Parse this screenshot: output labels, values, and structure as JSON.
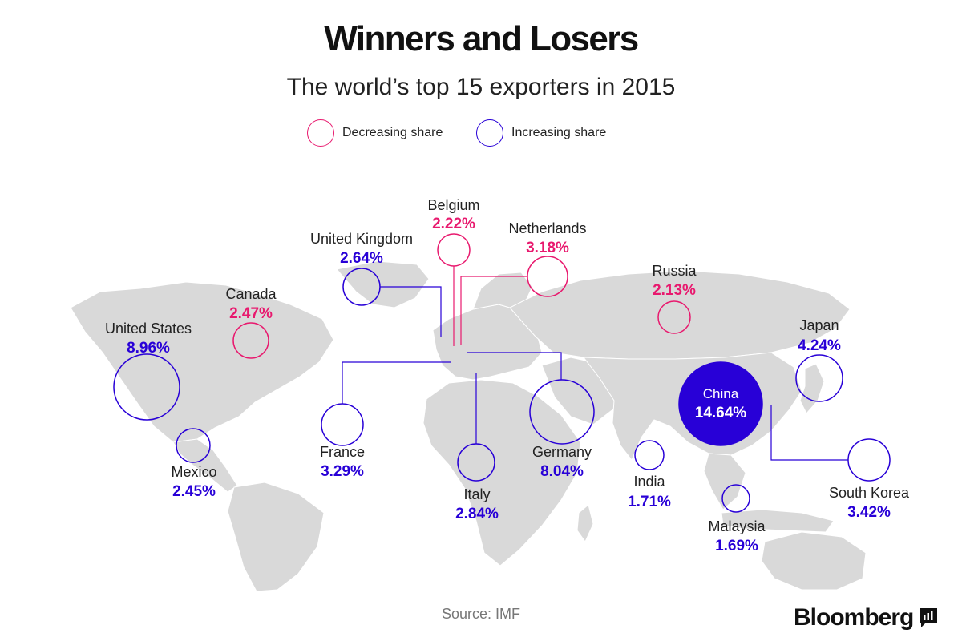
{
  "title": "Winners and Losers",
  "subtitle": "The world’s top 15 exporters in 2015",
  "legend": {
    "decreasing": "Decreasing share",
    "increasing": "Increasing share"
  },
  "colors": {
    "decreasing": "#e8196e",
    "increasing": "#2800d7",
    "land": "#d8d8d8",
    "leader_line_increasing": "#2800d7",
    "leader_line_decreasing": "#e8196e"
  },
  "source": "Source: IMF",
  "brand": "Bloomberg",
  "chart_data": {
    "type": "map-bubble",
    "title": "Winners and Losers",
    "subtitle": "The world’s top 15 exporters in 2015",
    "unit": "% share of world exports",
    "series": [
      {
        "name": "China",
        "value": 14.64,
        "label": "14.64%",
        "trend": "increasing"
      },
      {
        "name": "United States",
        "value": 8.96,
        "label": "8.96%",
        "trend": "increasing"
      },
      {
        "name": "Germany",
        "value": 8.04,
        "label": "8.04%",
        "trend": "increasing"
      },
      {
        "name": "Japan",
        "value": 4.24,
        "label": "4.24%",
        "trend": "increasing"
      },
      {
        "name": "South Korea",
        "value": 3.42,
        "label": "3.42%",
        "trend": "increasing"
      },
      {
        "name": "France",
        "value": 3.29,
        "label": "3.29%",
        "trend": "increasing"
      },
      {
        "name": "Netherlands",
        "value": 3.18,
        "label": "3.18%",
        "trend": "decreasing"
      },
      {
        "name": "Italy",
        "value": 2.84,
        "label": "2.84%",
        "trend": "increasing"
      },
      {
        "name": "United Kingdom",
        "value": 2.64,
        "label": "2.64%",
        "trend": "increasing"
      },
      {
        "name": "Canada",
        "value": 2.47,
        "label": "2.47%",
        "trend": "decreasing"
      },
      {
        "name": "Mexico",
        "value": 2.45,
        "label": "2.45%",
        "trend": "increasing"
      },
      {
        "name": "Belgium",
        "value": 2.22,
        "label": "2.22%",
        "trend": "decreasing"
      },
      {
        "name": "Russia",
        "value": 2.13,
        "label": "2.13%",
        "trend": "decreasing"
      },
      {
        "name": "India",
        "value": 1.71,
        "label": "1.71%",
        "trend": "increasing"
      },
      {
        "name": "Malaysia",
        "value": 1.69,
        "label": "1.69%",
        "trend": "increasing"
      }
    ]
  }
}
